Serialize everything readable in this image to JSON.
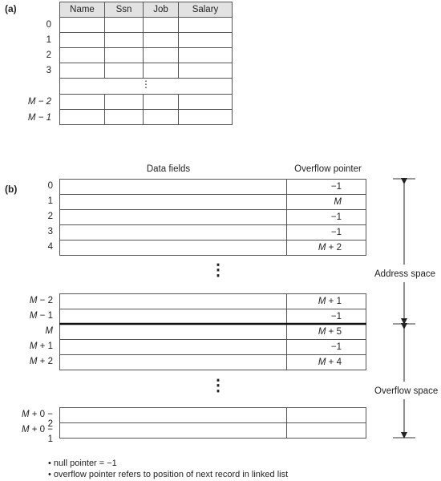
{
  "part_a": {
    "label": "(a)",
    "headers": [
      "Name",
      "Ssn",
      "Job",
      "Salary"
    ],
    "row_labels": [
      "0",
      "1",
      "2",
      "3",
      "M − 2",
      "M − 1"
    ],
    "gap_symbol": "⋮"
  },
  "part_b": {
    "label": "(b)",
    "col_data": "Data fields",
    "col_overflow": "Overflow pointer",
    "address_rows": [
      {
        "index": "0",
        "pointer": "−1"
      },
      {
        "index": "1",
        "pointer": "M"
      },
      {
        "index": "2",
        "pointer": "−1"
      },
      {
        "index": "3",
        "pointer": "−1"
      },
      {
        "index": "4",
        "pointer": "M + 2"
      }
    ],
    "address_end_rows": [
      {
        "index": "M − 2",
        "pointer": "M + 1"
      },
      {
        "index": "M − 1",
        "pointer": "−1"
      }
    ],
    "overflow_rows": [
      {
        "index": "M",
        "pointer": "M + 5"
      },
      {
        "index": "M + 1",
        "pointer": "−1"
      },
      {
        "index": "M + 2",
        "pointer": "M + 4"
      }
    ],
    "overflow_end_rows": [
      {
        "index": "M + 0 − 2",
        "pointer": ""
      },
      {
        "index": "M + 0 − 1",
        "pointer": ""
      }
    ],
    "address_space_label": "Address space",
    "overflow_space_label": "Overflow space",
    "gap_symbol": "⋮"
  },
  "notes": [
    "• null pointer = −1",
    "• overflow pointer refers to position of next record in linked list"
  ]
}
